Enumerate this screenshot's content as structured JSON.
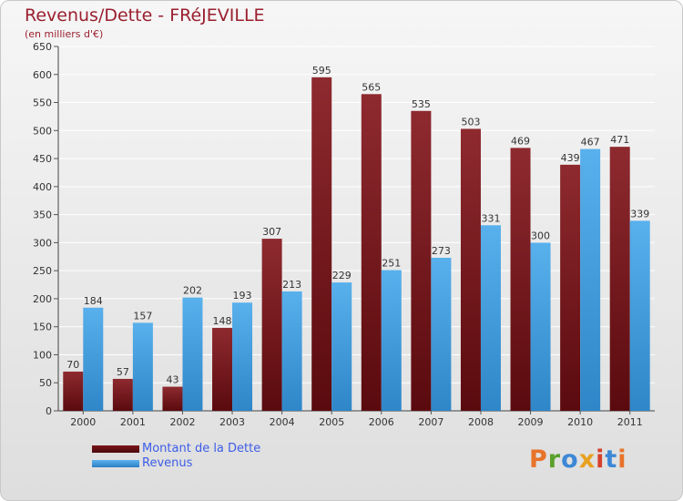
{
  "colors": {
    "dette": "#8a1f24",
    "revenus": "#4aa3e0",
    "title": "#9a1f2e",
    "axis_text": "#333333",
    "label_text": "#333333"
  },
  "chart_data": {
    "type": "bar",
    "title": "Revenus/Dette - FRéJEVILLE",
    "subtitle": "(en milliers d'€)",
    "xlabel": "",
    "ylabel": "",
    "ylim": [
      0,
      650
    ],
    "y_ticks": [
      0,
      50,
      100,
      150,
      200,
      250,
      300,
      350,
      400,
      450,
      500,
      550,
      600,
      650
    ],
    "grid": true,
    "legend_position": "bottom-left",
    "categories": [
      "2000",
      "2001",
      "2002",
      "2003",
      "2004",
      "2005",
      "2006",
      "2007",
      "2008",
      "2009",
      "2010",
      "2011"
    ],
    "series": [
      {
        "name": "Montant de la Dette",
        "values": [
          70,
          57,
          43,
          148,
          307,
          595,
          565,
          535,
          503,
          469,
          439,
          471
        ]
      },
      {
        "name": "Revenus",
        "values": [
          184,
          157,
          202,
          193,
          213,
          229,
          251,
          273,
          331,
          300,
          467,
          339
        ]
      }
    ]
  },
  "logo": {
    "text": "Proxiti"
  }
}
